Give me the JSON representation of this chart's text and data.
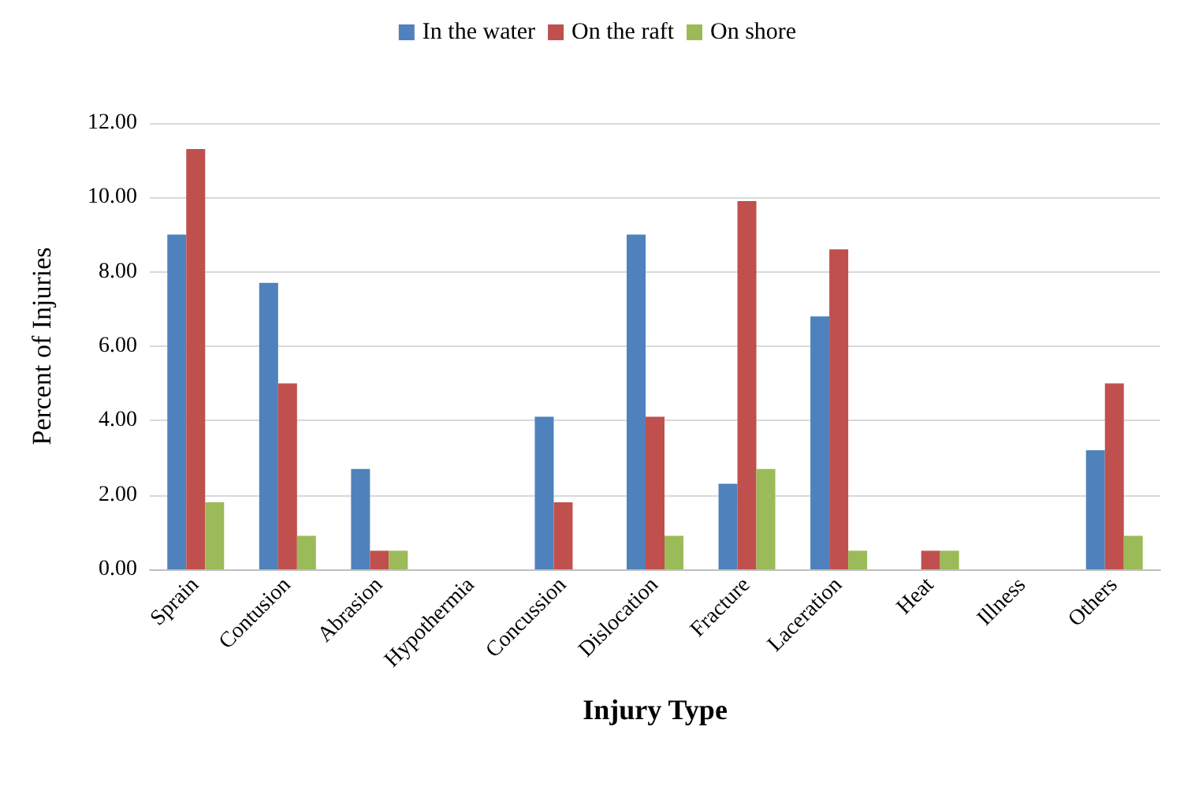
{
  "chart_data": {
    "type": "bar",
    "xlabel": "Injury Type",
    "ylabel": "Percent of Injuries",
    "categories": [
      "Sprain",
      "Contusion",
      "Abrasion",
      "Hypothermia",
      "Concussion",
      "Dislocation",
      "Fracture",
      "Laceration",
      "Heat",
      "Illness",
      "Others"
    ],
    "series": [
      {
        "name": "In the water",
        "color": "#4f81bd",
        "values": [
          9.0,
          7.7,
          2.7,
          0,
          4.1,
          9.0,
          2.3,
          6.8,
          0,
          0,
          3.2
        ]
      },
      {
        "name": "On the raft",
        "color": "#c0504d",
        "values": [
          11.3,
          5.0,
          0.5,
          0,
          1.8,
          4.1,
          9.9,
          8.6,
          0.5,
          0,
          5.0
        ]
      },
      {
        "name": "On shore",
        "color": "#9bbb59",
        "values": [
          1.8,
          0.9,
          0.5,
          0,
          0,
          0.9,
          2.7,
          0.5,
          0.5,
          0,
          0.9
        ]
      }
    ],
    "ylim": [
      0,
      12
    ],
    "yticks": [
      {
        "value": 0,
        "label": "0.00"
      },
      {
        "value": 2,
        "label": "2.00"
      },
      {
        "value": 4,
        "label": "4.00"
      },
      {
        "value": 6,
        "label": "6.00"
      },
      {
        "value": 8,
        "label": "8.00"
      },
      {
        "value": 10,
        "label": "10.00"
      },
      {
        "value": 12,
        "label": "12.00"
      }
    ],
    "grid": "y",
    "legend": "top"
  }
}
